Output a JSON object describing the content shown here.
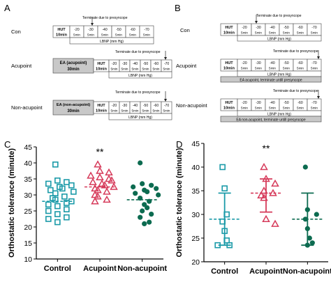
{
  "panels": {
    "a": "A",
    "b": "B",
    "c": "C",
    "d": "D"
  },
  "protocol": {
    "hut_label": "HUT",
    "hut_duration": "10min",
    "stage_pressures": [
      "-20",
      "-30",
      "-40",
      "-50",
      "-60",
      "-70"
    ],
    "stage_duration": "5min",
    "lbnp_label": "LBNP (mm Hg)",
    "terminate_label": "Terminate due to presyncope",
    "groups": [
      "Con",
      "Acupoint",
      "Non-acupoint"
    ],
    "ea_acupoint_label": "EA (acupoint)",
    "ea_acupoint_duration": "30min",
    "ea_nonacupoint_label": "EA (non-acupoint)",
    "ea_nonacupoint_duration": "30min",
    "b_acupoint_bar": "EA acupoint, terminate untill presyncope",
    "b_nonacupoint_bar": "EA non-acupoint, terminate untill presyncope"
  },
  "chart_data": [
    {
      "type": "scatter",
      "panel": "C",
      "ylabel": "Orthostatic tolerance (minute)",
      "ylim": [
        10,
        45
      ],
      "yticks": [
        10,
        15,
        20,
        25,
        30,
        35,
        40,
        45
      ],
      "categories": [
        "Control",
        "Acupoint",
        "Non-acupoint"
      ],
      "significance": {
        "category": "Acupoint",
        "label": "**"
      },
      "colors": [
        "#1a9aa8",
        "#d63a5a",
        "#0c6b50"
      ],
      "series": [
        {
          "values": [
            39.5,
            34.5,
            34,
            33.5,
            33,
            32.5,
            32,
            31.5,
            31,
            30.5,
            29.5,
            29,
            28.5,
            28,
            27.5,
            27,
            26.5,
            25.5,
            25,
            24,
            23,
            22.5,
            21.5
          ],
          "mean": 28
        },
        {
          "values": [
            39.5,
            37.5,
            37,
            36,
            35.5,
            35,
            34.5,
            34,
            33.5,
            33,
            32.5,
            32,
            31.5,
            31,
            30,
            29.5,
            28.5,
            28
          ],
          "mean": 32.5
        },
        {
          "values": [
            40,
            33.5,
            33,
            32.5,
            32,
            31.5,
            31,
            30.5,
            30,
            29,
            28,
            27,
            26,
            25,
            24,
            23,
            21.5,
            21
          ],
          "mean": 28.5
        }
      ]
    },
    {
      "type": "scatter",
      "panel": "D",
      "ylabel": "Orthostatic tolerance (minute)",
      "ylim": [
        20,
        45
      ],
      "yticks": [
        20,
        25,
        30,
        35,
        40,
        45
      ],
      "categories": [
        "Control",
        "Acupoint",
        "Non-acupoint"
      ],
      "significance": {
        "category": "Acupoint",
        "label": "**"
      },
      "colors": [
        "#1a9aa8",
        "#d63a5a",
        "#0c6b50"
      ],
      "series": [
        {
          "values": [
            40,
            35.5,
            30,
            28.5,
            26.5,
            24.5,
            23.5,
            23.5
          ],
          "mean": 29,
          "error": [
            23.5,
            34.5
          ]
        },
        {
          "values": [
            40,
            37.5,
            36.5,
            35,
            34.5,
            34,
            33.5,
            29,
            28
          ],
          "mean": 34.5,
          "error": [
            30.5,
            37.5
          ]
        },
        {
          "values": [
            40,
            31,
            30,
            29,
            27,
            25,
            24,
            23.5
          ],
          "mean": 29,
          "error": [
            23.5,
            34.5
          ]
        }
      ]
    }
  ]
}
